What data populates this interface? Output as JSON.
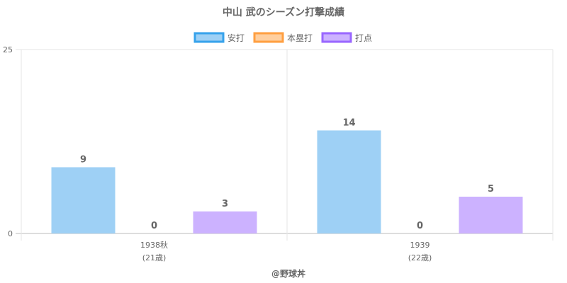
{
  "chart_data": {
    "type": "bar",
    "title": "中山 武のシーズン打撃成績",
    "categories": [
      {
        "line1": "1938秋",
        "line2": "(21歳)"
      },
      {
        "line1": "1939",
        "line2": "(22歳)"
      }
    ],
    "series": [
      {
        "name": "安打",
        "values": [
          9,
          14
        ],
        "fill": "#9ed0f5",
        "stroke": "#36a2eb"
      },
      {
        "name": "本塁打",
        "values": [
          0,
          0
        ],
        "fill": "#ffcf9f",
        "stroke": "#ff9f40"
      },
      {
        "name": "打点",
        "values": [
          3,
          5
        ],
        "fill": "#ccb2ff",
        "stroke": "#9966ff"
      }
    ],
    "ylim": [
      0,
      25
    ],
    "yticks": [
      0,
      25
    ],
    "grid": true,
    "legend_position": "top",
    "footer": "@野球丼"
  }
}
